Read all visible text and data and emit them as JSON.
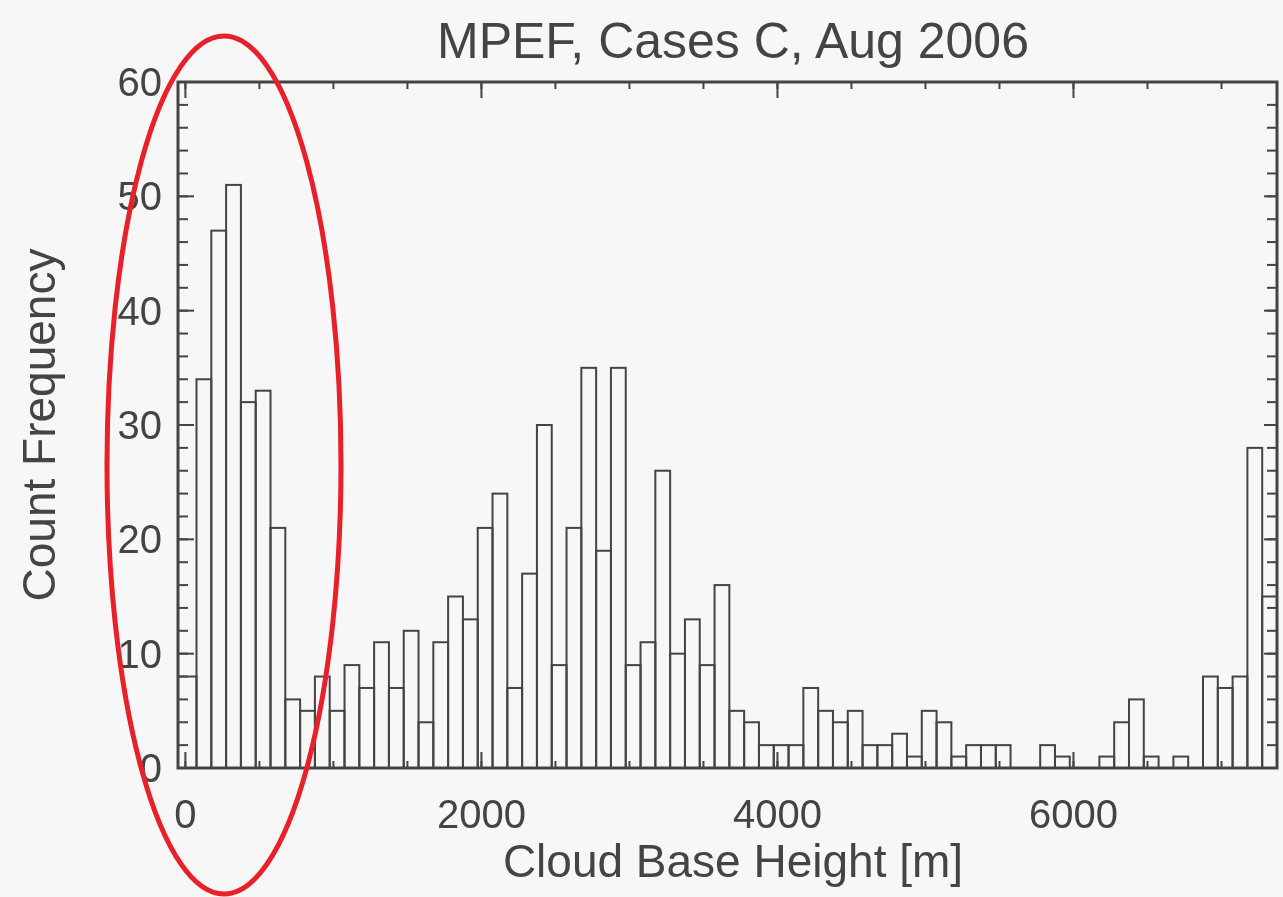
{
  "chart_data": {
    "type": "histogram",
    "title": "MPEF, Cases C, Aug 2006",
    "xlabel": "Cloud Base Height [m]",
    "ylabel": "Count Frequency",
    "bins": [
      -50,
      75,
      175,
      275,
      375,
      475,
      575,
      675,
      775,
      875,
      975,
      1075,
      1175,
      1275,
      1375,
      1475,
      1575,
      1675,
      1775,
      1875,
      1975,
      2075,
      2175,
      2275,
      2375,
      2475,
      2575,
      2675,
      2775,
      2875,
      2975,
      3075,
      3175,
      3275,
      3375,
      3475,
      3575,
      3675,
      3775,
      3875,
      3975,
      4075,
      4175,
      4275,
      4375,
      4475,
      4575,
      4675,
      4775,
      4875,
      4975,
      5075,
      5175,
      5275,
      5375,
      5475,
      5575,
      5775,
      5875,
      5975,
      6175,
      6275,
      6375,
      6475,
      6575,
      6675,
      6775,
      6875,
      6975,
      7075,
      7175,
      7275,
      7375
    ],
    "values": [
      8,
      34,
      47,
      51,
      32,
      33,
      21,
      6,
      5,
      8,
      5,
      9,
      7,
      11,
      7,
      12,
      4,
      11,
      15,
      13,
      21,
      24,
      7,
      17,
      30,
      9,
      21,
      35,
      19,
      35,
      9,
      11,
      26,
      10,
      13,
      9,
      16,
      5,
      4,
      2,
      2,
      2,
      7,
      5,
      4,
      5,
      2,
      2,
      3,
      1,
      5,
      4,
      1,
      2,
      2,
      2,
      0,
      2,
      1,
      0,
      1,
      4,
      6,
      1,
      0,
      1,
      0,
      8,
      7,
      8,
      28,
      15
    ],
    "color": "#444444",
    "xlim": [
      -50,
      7375
    ],
    "xticks": [
      0,
      2000,
      4000,
      6000
    ],
    "ylim": [
      0,
      60
    ],
    "yticks": [
      0,
      10,
      20,
      30,
      40,
      50,
      60
    ],
    "grid": false
  }
}
